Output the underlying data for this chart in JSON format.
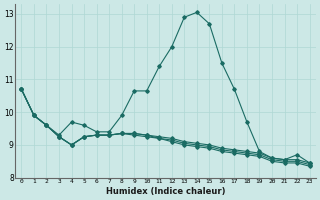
{
  "title": "",
  "xlabel": "Humidex (Indice chaleur)",
  "ylabel": "",
  "bg_color": "#cce8e6",
  "grid_color": "#afd8d4",
  "line_color": "#1a6b63",
  "x_ticks": [
    0,
    1,
    2,
    3,
    4,
    5,
    6,
    7,
    8,
    9,
    10,
    11,
    12,
    13,
    14,
    15,
    16,
    17,
    18,
    19,
    20,
    21,
    22,
    23
  ],
  "ylim": [
    8.0,
    13.3
  ],
  "yticks": [
    8,
    9,
    10,
    11,
    12,
    13
  ],
  "lines_data": [
    {
      "y": [
        10.7,
        9.9,
        9.6,
        9.3,
        9.7,
        9.6,
        9.4,
        9.4,
        9.9,
        10.65,
        10.65,
        11.4,
        12.0,
        12.9,
        13.05,
        12.7,
        11.5,
        10.7,
        9.7,
        8.8,
        8.6,
        8.55,
        8.7,
        8.45
      ]
    },
    {
      "y": [
        10.7,
        9.9,
        9.6,
        9.25,
        9.0,
        9.25,
        9.3,
        9.3,
        9.35,
        9.35,
        9.3,
        9.25,
        9.2,
        9.1,
        9.05,
        9.0,
        8.9,
        8.85,
        8.8,
        8.75,
        8.6,
        8.55,
        8.55,
        8.45
      ]
    },
    {
      "y": [
        10.7,
        9.9,
        9.6,
        9.25,
        9.0,
        9.25,
        9.3,
        9.3,
        9.35,
        9.35,
        9.3,
        9.2,
        9.15,
        9.05,
        9.0,
        8.95,
        8.85,
        8.8,
        8.75,
        8.7,
        8.55,
        8.5,
        8.5,
        8.4
      ]
    },
    {
      "y": [
        10.7,
        9.9,
        9.6,
        9.25,
        9.0,
        9.25,
        9.3,
        9.3,
        9.35,
        9.3,
        9.25,
        9.2,
        9.1,
        9.0,
        8.95,
        8.9,
        8.8,
        8.75,
        8.7,
        8.65,
        8.5,
        8.45,
        8.45,
        8.35
      ]
    }
  ]
}
